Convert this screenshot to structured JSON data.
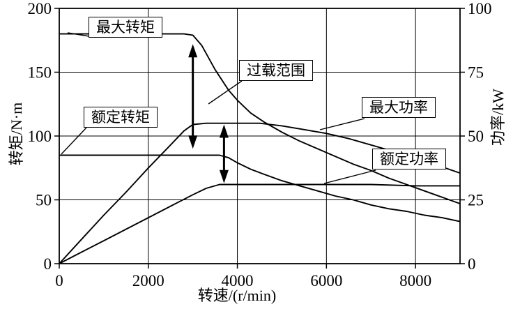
{
  "chart_data": {
    "type": "line",
    "title": "",
    "xlabel": "转速/(r/min)",
    "ylabel_left": "转矩/N·m",
    "ylabel_right": "功率/kW",
    "xlim": [
      0,
      9000
    ],
    "ylim_left": [
      0,
      200
    ],
    "ylim_right": [
      0,
      100
    ],
    "x_ticks": [
      0,
      2000,
      4000,
      6000,
      8000
    ],
    "y_left_ticks": [
      0,
      50,
      100,
      150,
      200
    ],
    "y_right_ticks": [
      0,
      25,
      50,
      75,
      100
    ],
    "grid": true,
    "legend_position": "none",
    "line_color": "#000000",
    "series": [
      {
        "key": "max-torque",
        "name": "最大转矩",
        "axis": "left",
        "unit": "N·m",
        "points": [
          [
            0,
            180
          ],
          [
            2800,
            180
          ],
          [
            3000,
            179
          ],
          [
            3200,
            171
          ],
          [
            3500,
            152
          ],
          [
            3800,
            136
          ],
          [
            4000,
            128
          ],
          [
            4300,
            118
          ],
          [
            4600,
            111
          ],
          [
            5000,
            103
          ],
          [
            5400,
            96
          ],
          [
            5800,
            90
          ],
          [
            6200,
            84
          ],
          [
            6600,
            78
          ],
          [
            7000,
            73
          ],
          [
            7400,
            67
          ],
          [
            7800,
            62
          ],
          [
            8200,
            57
          ],
          [
            8600,
            52
          ],
          [
            9000,
            47
          ]
        ]
      },
      {
        "key": "rated-torque",
        "name": "额定转矩",
        "axis": "left",
        "unit": "N·m",
        "points": [
          [
            0,
            85
          ],
          [
            3600,
            85
          ],
          [
            3800,
            83
          ],
          [
            4000,
            79
          ],
          [
            4300,
            74
          ],
          [
            4600,
            70
          ],
          [
            5000,
            65
          ],
          [
            5400,
            61
          ],
          [
            5800,
            57
          ],
          [
            6200,
            53
          ],
          [
            6600,
            50
          ],
          [
            7000,
            46
          ],
          [
            7400,
            43
          ],
          [
            7800,
            41
          ],
          [
            8200,
            38
          ],
          [
            8600,
            36
          ],
          [
            9000,
            33
          ]
        ]
      },
      {
        "key": "max-power",
        "name": "最大功率",
        "axis": "right",
        "unit": "kW",
        "points": [
          [
            0,
            0
          ],
          [
            500,
            9.5
          ],
          [
            1000,
            19
          ],
          [
            1500,
            28
          ],
          [
            2000,
            37.5
          ],
          [
            2500,
            46.5
          ],
          [
            2800,
            52
          ],
          [
            3000,
            54.5
          ],
          [
            3300,
            55
          ],
          [
            4000,
            55
          ],
          [
            4500,
            55
          ],
          [
            5000,
            54
          ],
          [
            5500,
            52.5
          ],
          [
            6000,
            51
          ],
          [
            6500,
            49
          ],
          [
            7000,
            46.5
          ],
          [
            7500,
            44
          ],
          [
            8000,
            41.5
          ],
          [
            8500,
            38.5
          ],
          [
            9000,
            35.5
          ]
        ]
      },
      {
        "key": "rated-power",
        "name": "额定功率",
        "axis": "right",
        "unit": "kW",
        "points": [
          [
            0,
            0
          ],
          [
            500,
            4.5
          ],
          [
            1000,
            9
          ],
          [
            1500,
            13.5
          ],
          [
            2000,
            18
          ],
          [
            2500,
            22.5
          ],
          [
            3000,
            27
          ],
          [
            3300,
            29.5
          ],
          [
            3600,
            31
          ],
          [
            4000,
            31
          ],
          [
            5000,
            31
          ],
          [
            6000,
            31
          ],
          [
            7000,
            31
          ],
          [
            8000,
            30.5
          ],
          [
            9000,
            30.5
          ]
        ]
      }
    ],
    "annotations": [
      {
        "label": "最大转矩",
        "target": "max-torque"
      },
      {
        "label": "过载范围",
        "target": "overload-range"
      },
      {
        "label": "额定转矩",
        "target": "rated-torque"
      },
      {
        "label": "最大功率",
        "target": "max-power"
      },
      {
        "label": "额定功率",
        "target": "rated-power"
      }
    ],
    "overload_arrows": [
      {
        "at_rpm": 3000,
        "from_nm": 90,
        "to_nm": 172
      },
      {
        "at_rpm": 3700,
        "from_nm": 63,
        "to_nm": 109
      }
    ]
  }
}
